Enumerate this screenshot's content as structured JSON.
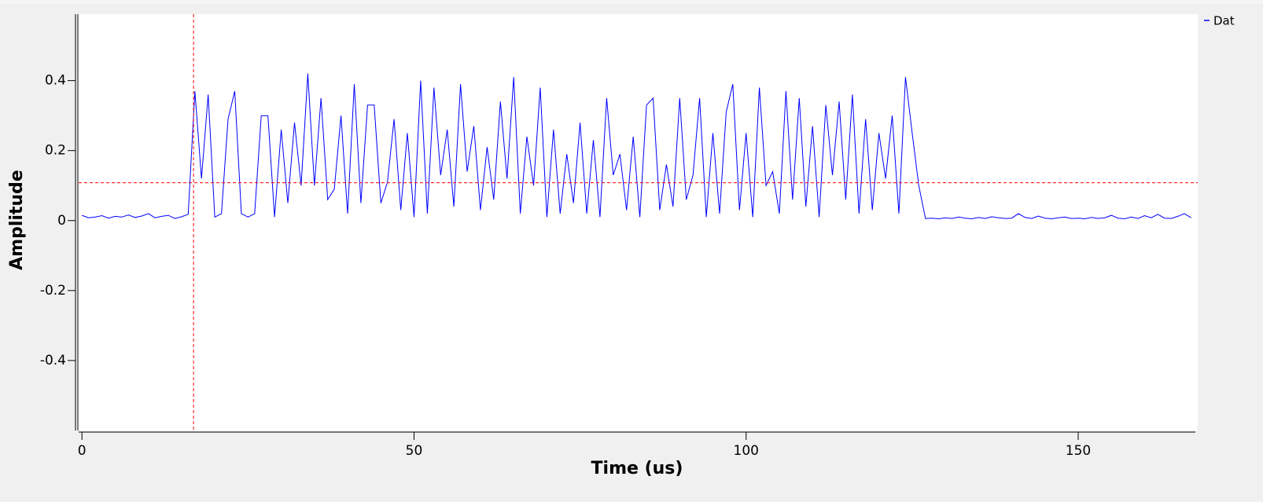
{
  "chart_data": {
    "type": "line",
    "x_label": "Time (us)",
    "y_label": "Amplitude",
    "xlim": [
      -0.5,
      168
    ],
    "ylim": [
      -0.6,
      0.59
    ],
    "xticks": [
      0,
      50,
      100,
      150
    ],
    "yticks": [
      {
        "value": -0.4,
        "label": "-0.4"
      },
      {
        "value": -0.2,
        "label": "-0.2"
      },
      0,
      0.2,
      0.4
    ],
    "marker_x": 16.8,
    "marker_y": 0.108,
    "marker_color": "#ff0000",
    "x": [
      0,
      1,
      2,
      3,
      4,
      5,
      6,
      7,
      8,
      9,
      10,
      11,
      12,
      13,
      14,
      15,
      16,
      17,
      18,
      19,
      20,
      21,
      22,
      23,
      24,
      25,
      26,
      27,
      28,
      29,
      30,
      31,
      32,
      33,
      34,
      35,
      36,
      37,
      38,
      39,
      40,
      41,
      42,
      43,
      44,
      45,
      46,
      47,
      48,
      49,
      50,
      51,
      52,
      53,
      54,
      55,
      56,
      57,
      58,
      59,
      60,
      61,
      62,
      63,
      64,
      65,
      66,
      67,
      68,
      69,
      70,
      71,
      72,
      73,
      74,
      75,
      76,
      77,
      78,
      79,
      80,
      81,
      82,
      83,
      84,
      85,
      86,
      87,
      88,
      89,
      90,
      91,
      92,
      93,
      94,
      95,
      96,
      97,
      98,
      99,
      100,
      101,
      102,
      103,
      104,
      105,
      106,
      107,
      108,
      109,
      110,
      111,
      112,
      113,
      114,
      115,
      116,
      117,
      118,
      119,
      120,
      121,
      122,
      123,
      124,
      125,
      126,
      127,
      128,
      129,
      130,
      131,
      132,
      133,
      134,
      135,
      136,
      137,
      138,
      139,
      140,
      141,
      142,
      143,
      144,
      145,
      146,
      147,
      148,
      149,
      150,
      151,
      152,
      153,
      154,
      155,
      156,
      157,
      158,
      159,
      160,
      161,
      162,
      163,
      164,
      165,
      166,
      167
    ],
    "series": [
      {
        "name": "Dat",
        "color": "#0000ff",
        "values": [
          0.015,
          0.008,
          0.01,
          0.014,
          0.007,
          0.012,
          0.01,
          0.016,
          0.009,
          0.013,
          0.02,
          0.008,
          0.012,
          0.015,
          0.006,
          0.011,
          0.018,
          0.37,
          0.12,
          0.36,
          0.01,
          0.02,
          0.29,
          0.37,
          0.02,
          0.01,
          0.02,
          0.3,
          0.3,
          0.01,
          0.26,
          0.05,
          0.28,
          0.1,
          0.42,
          0.1,
          0.35,
          0.06,
          0.09,
          0.3,
          0.02,
          0.39,
          0.05,
          0.33,
          0.33,
          0.05,
          0.11,
          0.29,
          0.03,
          0.25,
          0.01,
          0.4,
          0.02,
          0.38,
          0.13,
          0.26,
          0.04,
          0.39,
          0.14,
          0.27,
          0.03,
          0.21,
          0.06,
          0.34,
          0.12,
          0.41,
          0.02,
          0.24,
          0.1,
          0.38,
          0.01,
          0.26,
          0.02,
          0.19,
          0.05,
          0.28,
          0.02,
          0.23,
          0.01,
          0.35,
          0.13,
          0.19,
          0.03,
          0.24,
          0.01,
          0.33,
          0.35,
          0.03,
          0.16,
          0.04,
          0.35,
          0.06,
          0.13,
          0.35,
          0.01,
          0.25,
          0.02,
          0.31,
          0.39,
          0.03,
          0.25,
          0.01,
          0.38,
          0.1,
          0.14,
          0.02,
          0.37,
          0.06,
          0.35,
          0.04,
          0.27,
          0.01,
          0.33,
          0.13,
          0.34,
          0.06,
          0.36,
          0.02,
          0.29,
          0.03,
          0.25,
          0.12,
          0.3,
          0.02,
          0.41,
          0.25,
          0.1,
          0.006,
          0.007,
          0.005,
          0.008,
          0.006,
          0.01,
          0.007,
          0.005,
          0.009,
          0.006,
          0.011,
          0.008,
          0.006,
          0.007,
          0.02,
          0.009,
          0.006,
          0.013,
          0.007,
          0.005,
          0.008,
          0.01,
          0.006,
          0.007,
          0.005,
          0.009,
          0.006,
          0.008,
          0.015,
          0.007,
          0.005,
          0.01,
          0.006,
          0.014,
          0.008,
          0.018,
          0.007,
          0.006,
          0.012,
          0.02,
          0.008
        ]
      }
    ]
  }
}
